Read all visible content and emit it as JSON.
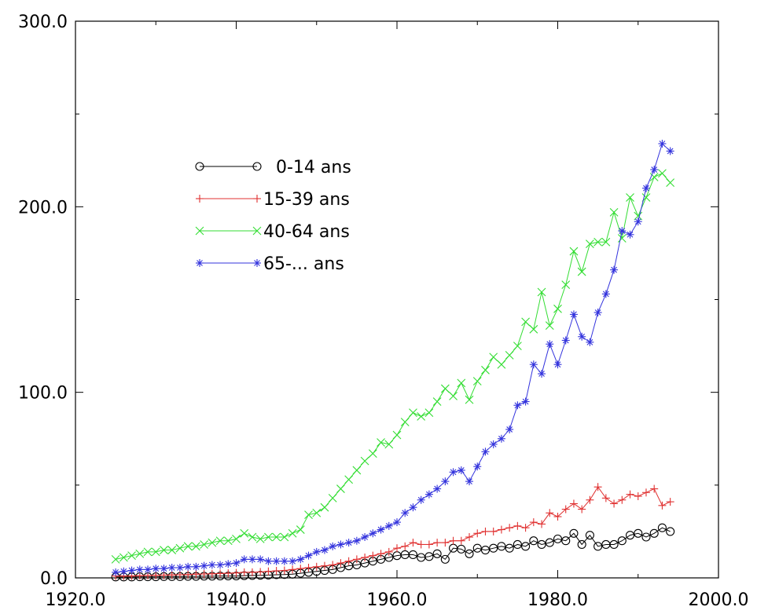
{
  "chart_data": {
    "type": "line",
    "title": "",
    "xlabel": "",
    "ylabel": "",
    "xlim": [
      1920,
      2000
    ],
    "ylim": [
      0,
      300
    ],
    "x_ticks": [
      1920,
      1940,
      1960,
      1980,
      2000
    ],
    "x_tick_labels": [
      "1920.0",
      "1940.0",
      "1960.0",
      "1980.0",
      "2000.0"
    ],
    "y_ticks": [
      0,
      100,
      200,
      300
    ],
    "y_tick_labels": [
      "0.0",
      "100.0",
      "200.0",
      "300.0"
    ],
    "grid": false,
    "legend_position": "upper-left",
    "x": [
      1925,
      1926,
      1927,
      1928,
      1929,
      1930,
      1931,
      1932,
      1933,
      1934,
      1935,
      1936,
      1937,
      1938,
      1939,
      1940,
      1941,
      1942,
      1943,
      1944,
      1945,
      1946,
      1947,
      1948,
      1949,
      1950,
      1951,
      1952,
      1953,
      1954,
      1955,
      1956,
      1957,
      1958,
      1959,
      1960,
      1961,
      1962,
      1963,
      1964,
      1965,
      1966,
      1967,
      1968,
      1969,
      1970,
      1971,
      1972,
      1973,
      1974,
      1975,
      1976,
      1977,
      1978,
      1979,
      1980,
      1981,
      1982,
      1983,
      1984,
      1985,
      1986,
      1987,
      1988,
      1989,
      1990,
      1991,
      1992,
      1993,
      1994
    ],
    "series": [
      {
        "name": "0-14 ans",
        "color": "#000000",
        "marker": "circle",
        "values": [
          0.5,
          0.5,
          0.5,
          0.6,
          0.6,
          0.6,
          0.7,
          0.7,
          0.7,
          0.8,
          0.8,
          0.9,
          0.9,
          1,
          1,
          1,
          1.2,
          1.3,
          1.4,
          1.5,
          1.7,
          1.8,
          2,
          2.5,
          3,
          3.5,
          4,
          4.5,
          5.5,
          6.5,
          7,
          8,
          9,
          10,
          11,
          12,
          12.5,
          12.5,
          11,
          11.5,
          13,
          10,
          16,
          15.5,
          13,
          16,
          15,
          16,
          17,
          16,
          18,
          17,
          20,
          18,
          19,
          21,
          20,
          24,
          18,
          23,
          17,
          18,
          18,
          20,
          23,
          24,
          22,
          24,
          27,
          25
        ]
      },
      {
        "name": "15-39 ans",
        "color": "#e03030",
        "marker": "plus",
        "values": [
          1,
          1,
          1,
          1.2,
          1.3,
          1.4,
          1.5,
          1.6,
          1.7,
          1.8,
          2,
          2.1,
          2.2,
          2.4,
          2.5,
          2.7,
          3,
          3,
          3.2,
          3.5,
          3.8,
          4,
          4.5,
          5,
          5.5,
          6,
          6.5,
          7,
          8,
          9,
          10,
          11,
          12,
          13,
          14,
          16,
          17,
          19,
          18,
          18,
          19,
          19,
          20,
          20,
          22,
          24,
          25,
          25,
          26,
          27,
          28,
          27,
          30,
          29,
          35,
          33,
          37,
          40,
          37,
          42,
          49,
          43,
          40,
          42,
          45,
          44,
          46,
          48,
          39,
          41
        ]
      },
      {
        "name": "40-64 ans",
        "color": "#33dd33",
        "marker": "x",
        "values": [
          10,
          11,
          12,
          13,
          14,
          14,
          15,
          15,
          16,
          17,
          17,
          18,
          19,
          20,
          20,
          21,
          24,
          22,
          21,
          22,
          22,
          22,
          24,
          26,
          34,
          35,
          38,
          43,
          48,
          53,
          58,
          63,
          67,
          73,
          72,
          77,
          84,
          89,
          87,
          89,
          95,
          102,
          98,
          105,
          96,
          106,
          112,
          119,
          115,
          120,
          125,
          138,
          134,
          154,
          136,
          145,
          158,
          176,
          165,
          180,
          181,
          181,
          197,
          183,
          205,
          195,
          205,
          216,
          218,
          213
        ]
      },
      {
        "name": "65-... ans",
        "color": "#3333dd",
        "marker": "asterisk",
        "values": [
          3,
          3.5,
          4,
          4.5,
          4.5,
          5,
          5,
          5.5,
          5.5,
          6,
          6,
          6.5,
          7,
          7,
          7.5,
          8,
          10,
          10,
          10,
          9,
          9,
          9,
          9,
          10,
          12,
          14,
          15,
          17,
          18,
          19,
          20,
          22,
          24,
          26,
          28,
          30,
          35,
          38,
          42,
          45,
          48,
          52,
          57,
          58,
          52,
          60,
          68,
          72,
          75,
          80,
          93,
          95,
          115,
          110,
          126,
          115,
          128,
          142,
          130,
          127,
          143,
          153,
          166,
          187,
          185,
          192,
          210,
          220,
          234,
          230
        ]
      }
    ]
  }
}
